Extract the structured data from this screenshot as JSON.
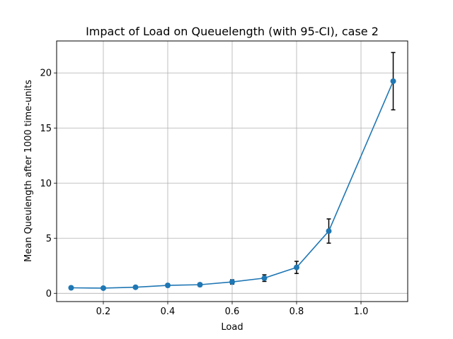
{
  "chart_data": {
    "type": "line",
    "title": "Impact of Load on Queuelength (with 95-CI), case 2",
    "xlabel": "Load",
    "ylabel": "Mean Queulength after 1000 time-units",
    "xlim": [
      0.055,
      1.145
    ],
    "ylim": [
      -0.75,
      22.9
    ],
    "xticks": [
      0.2,
      0.4,
      0.6,
      0.8,
      1.0
    ],
    "xtick_labels": [
      "0.2",
      "0.4",
      "0.6",
      "0.8",
      "1.0"
    ],
    "yticks": [
      0,
      5,
      10,
      15,
      20
    ],
    "ytick_labels": [
      "0",
      "5",
      "10",
      "15",
      "20"
    ],
    "grid": true,
    "series": [
      {
        "x": [
          0.1,
          0.2,
          0.3,
          0.4,
          0.5,
          0.6,
          0.7,
          0.8,
          0.9,
          1.1
        ],
        "y": [
          0.5,
          0.47,
          0.55,
          0.72,
          0.78,
          1.03,
          1.38,
          2.35,
          5.65,
          19.25
        ],
        "ci": [
          0.12,
          0.1,
          0.12,
          0.15,
          0.15,
          0.2,
          0.3,
          0.55,
          1.1,
          2.6
        ],
        "color": "#1f77b4"
      }
    ],
    "errorbar_color": "#000000"
  }
}
